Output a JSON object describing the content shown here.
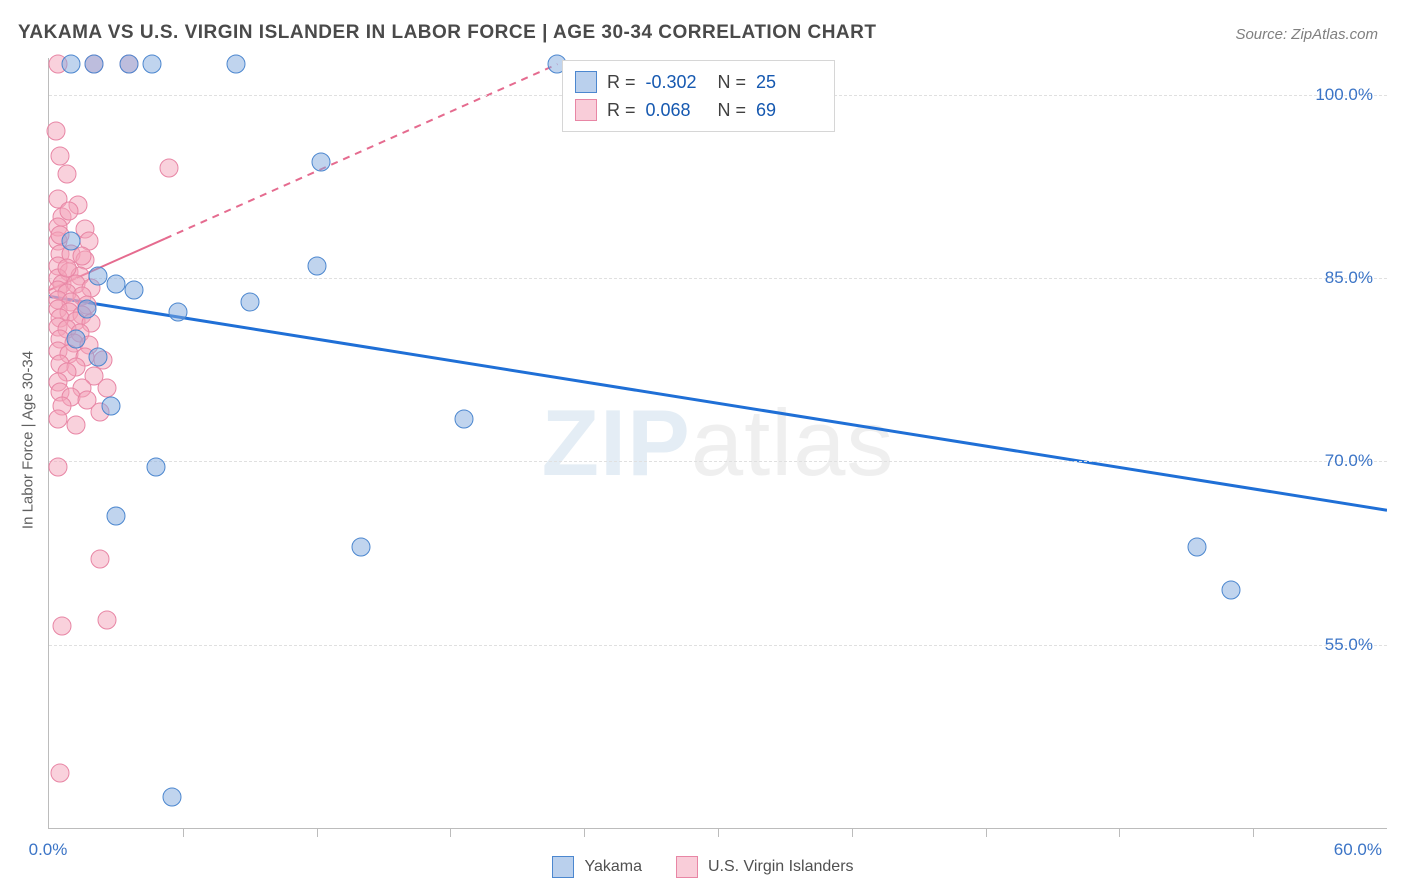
{
  "title": "YAKAMA VS U.S. VIRGIN ISLANDER IN LABOR FORCE | AGE 30-34 CORRELATION CHART",
  "source": "Source: ZipAtlas.com",
  "ylabel": "In Labor Force | Age 30-34",
  "watermark": {
    "first": "ZIP",
    "rest": "atlas"
  },
  "chart": {
    "type": "scatter",
    "background_color": "#ffffff",
    "grid_color": "#e0e0e0",
    "axis_color": "#bcbcbc",
    "tick_label_color": "#3b74c6",
    "tick_fontsize": 17,
    "xlim": [
      0,
      60
    ],
    "ylim": [
      40,
      103
    ],
    "xticks_minor": [
      6,
      12,
      18,
      24,
      30,
      36,
      42,
      48,
      54
    ],
    "xtick_labels": {
      "0": "0.0%",
      "60": "60.0%"
    },
    "ygrid": [
      55,
      70,
      85,
      100
    ],
    "ytick_labels": {
      "55": "55.0%",
      "70": "70.0%",
      "85": "85.0%",
      "100": "100.0%"
    },
    "marker_size": 19
  },
  "series": {
    "yakama": {
      "label": "Yakama",
      "color_fill": "rgba(130,170,222,0.50)",
      "color_stroke": "#4c87cf",
      "R": "-0.302",
      "N": "25",
      "trend": {
        "x1": 0,
        "y1": 83.5,
        "x2": 60,
        "y2": 66.0,
        "stroke": "#1f6fd6",
        "width": 3,
        "dash": "none"
      },
      "points": [
        [
          1.0,
          102.5
        ],
        [
          2.0,
          102.5
        ],
        [
          3.6,
          102.5
        ],
        [
          4.6,
          102.5
        ],
        [
          8.4,
          102.5
        ],
        [
          22.8,
          102.5
        ],
        [
          12.2,
          94.5
        ],
        [
          12.0,
          86.0
        ],
        [
          1.0,
          88.0
        ],
        [
          2.2,
          85.2
        ],
        [
          3.0,
          84.5
        ],
        [
          3.8,
          84.0
        ],
        [
          1.7,
          82.5
        ],
        [
          5.8,
          82.2
        ],
        [
          9.0,
          83.0
        ],
        [
          1.2,
          80.0
        ],
        [
          2.2,
          78.5
        ],
        [
          2.8,
          74.5
        ],
        [
          4.8,
          69.5
        ],
        [
          3.0,
          65.5
        ],
        [
          18.6,
          73.5
        ],
        [
          14.0,
          63.0
        ],
        [
          51.5,
          63.0
        ],
        [
          53.0,
          59.5
        ],
        [
          5.5,
          42.5
        ]
      ]
    },
    "usvi": {
      "label": "U.S. Virgin Islanders",
      "color_fill": "rgba(244,164,186,0.50)",
      "color_stroke": "#e886a5",
      "R": "0.068",
      "N": "69",
      "trend": {
        "x1": 0,
        "y1": 84.0,
        "x2": 22.8,
        "y2": 102.5,
        "stroke": "#e56b8f",
        "width": 2,
        "dash": "7 6",
        "solid_to": 5.2
      },
      "points": [
        [
          0.4,
          102.5
        ],
        [
          2.0,
          102.5
        ],
        [
          3.6,
          102.5
        ],
        [
          0.3,
          97.0
        ],
        [
          0.5,
          95.0
        ],
        [
          0.8,
          93.5
        ],
        [
          5.4,
          94.0
        ],
        [
          0.4,
          91.5
        ],
        [
          1.3,
          91.0
        ],
        [
          0.6,
          90.0
        ],
        [
          0.4,
          89.2
        ],
        [
          1.6,
          89.0
        ],
        [
          0.4,
          88.0
        ],
        [
          1.8,
          88.0
        ],
        [
          0.5,
          87.0
        ],
        [
          1.0,
          87.0
        ],
        [
          1.6,
          86.5
        ],
        [
          0.4,
          86.0
        ],
        [
          0.9,
          85.5
        ],
        [
          1.4,
          85.2
        ],
        [
          0.4,
          85.0
        ],
        [
          0.6,
          84.5
        ],
        [
          1.2,
          84.5
        ],
        [
          1.9,
          84.2
        ],
        [
          0.4,
          84.0
        ],
        [
          0.8,
          83.8
        ],
        [
          1.5,
          83.5
        ],
        [
          0.4,
          83.2
        ],
        [
          1.0,
          83.0
        ],
        [
          1.7,
          82.8
        ],
        [
          0.4,
          82.5
        ],
        [
          0.9,
          82.2
        ],
        [
          1.5,
          82.0
        ],
        [
          0.5,
          81.7
        ],
        [
          1.2,
          81.5
        ],
        [
          1.9,
          81.3
        ],
        [
          0.4,
          81.0
        ],
        [
          0.8,
          80.8
        ],
        [
          1.4,
          80.5
        ],
        [
          0.5,
          80.0
        ],
        [
          1.1,
          79.7
        ],
        [
          1.8,
          79.5
        ],
        [
          0.4,
          79.0
        ],
        [
          0.9,
          78.8
        ],
        [
          1.6,
          78.5
        ],
        [
          2.4,
          78.3
        ],
        [
          0.5,
          78.0
        ],
        [
          1.2,
          77.7
        ],
        [
          0.8,
          77.3
        ],
        [
          2.0,
          77.0
        ],
        [
          0.4,
          76.5
        ],
        [
          1.5,
          76.0
        ],
        [
          2.6,
          76.0
        ],
        [
          0.5,
          75.7
        ],
        [
          1.0,
          75.3
        ],
        [
          1.7,
          75.0
        ],
        [
          0.6,
          74.5
        ],
        [
          2.3,
          74.0
        ],
        [
          0.4,
          73.5
        ],
        [
          1.2,
          73.0
        ],
        [
          0.4,
          69.5
        ],
        [
          2.3,
          62.0
        ],
        [
          2.6,
          57.0
        ],
        [
          0.6,
          56.5
        ],
        [
          0.5,
          44.5
        ],
        [
          0.8,
          85.8
        ],
        [
          1.5,
          86.8
        ],
        [
          0.5,
          88.5
        ],
        [
          0.9,
          90.5
        ]
      ]
    }
  },
  "legend_top": {
    "rows": [
      {
        "swatch": "blue",
        "R_label": "R =",
        "R": "-0.302",
        "N_label": "N =",
        "N": "25"
      },
      {
        "swatch": "pink",
        "R_label": "R =",
        "R": "0.068",
        "N_label": "N =",
        "N": "69"
      }
    ]
  },
  "legend_bottom": {
    "items": [
      {
        "swatch": "blue",
        "label": "Yakama"
      },
      {
        "swatch": "pink",
        "label": "U.S. Virgin Islanders"
      }
    ]
  }
}
